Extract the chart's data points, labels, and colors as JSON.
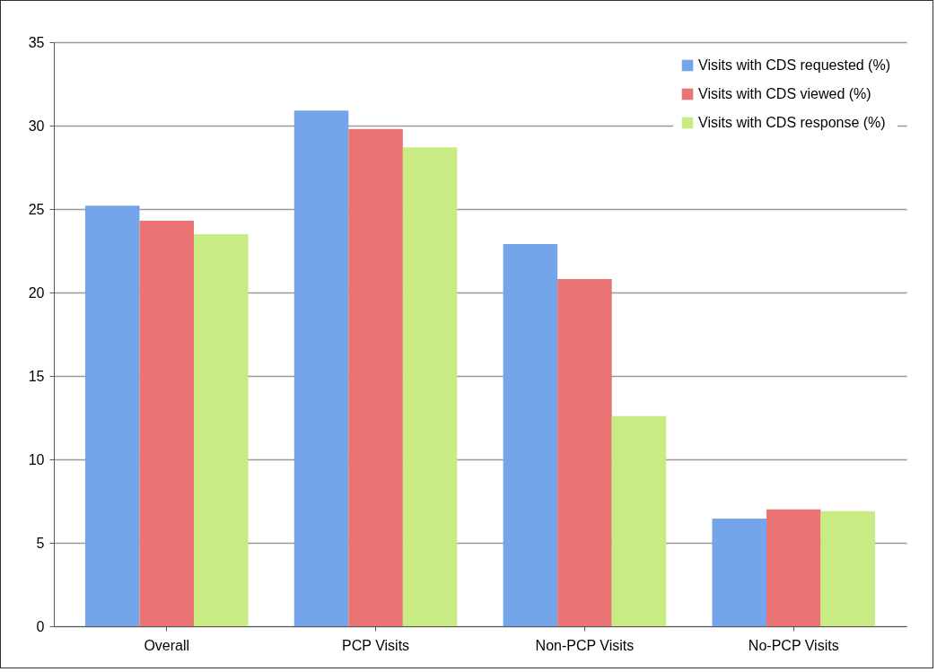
{
  "chart_data": {
    "type": "bar",
    "categories": [
      "Overall",
      "PCP Visits",
      "Non-PCP Visits",
      "No-PCP Visits"
    ],
    "series": [
      {
        "name": "Visits with CDS requested (%)",
        "color": "#74a4ea",
        "values": [
          25.2,
          30.9,
          22.9,
          6.45
        ]
      },
      {
        "name": "Visits with CDS viewed (%)",
        "color": "#ea7474",
        "values": [
          24.3,
          29.8,
          20.8,
          7.0
        ]
      },
      {
        "name": "Visits with CDS response (%)",
        "color": "#c9eb84",
        "values": [
          23.5,
          28.7,
          12.6,
          6.9
        ]
      }
    ],
    "ylim": [
      0,
      35
    ],
    "yticks": [
      0,
      5,
      10,
      15,
      20,
      25,
      30,
      35
    ],
    "grid": "y",
    "legend": "top right"
  }
}
